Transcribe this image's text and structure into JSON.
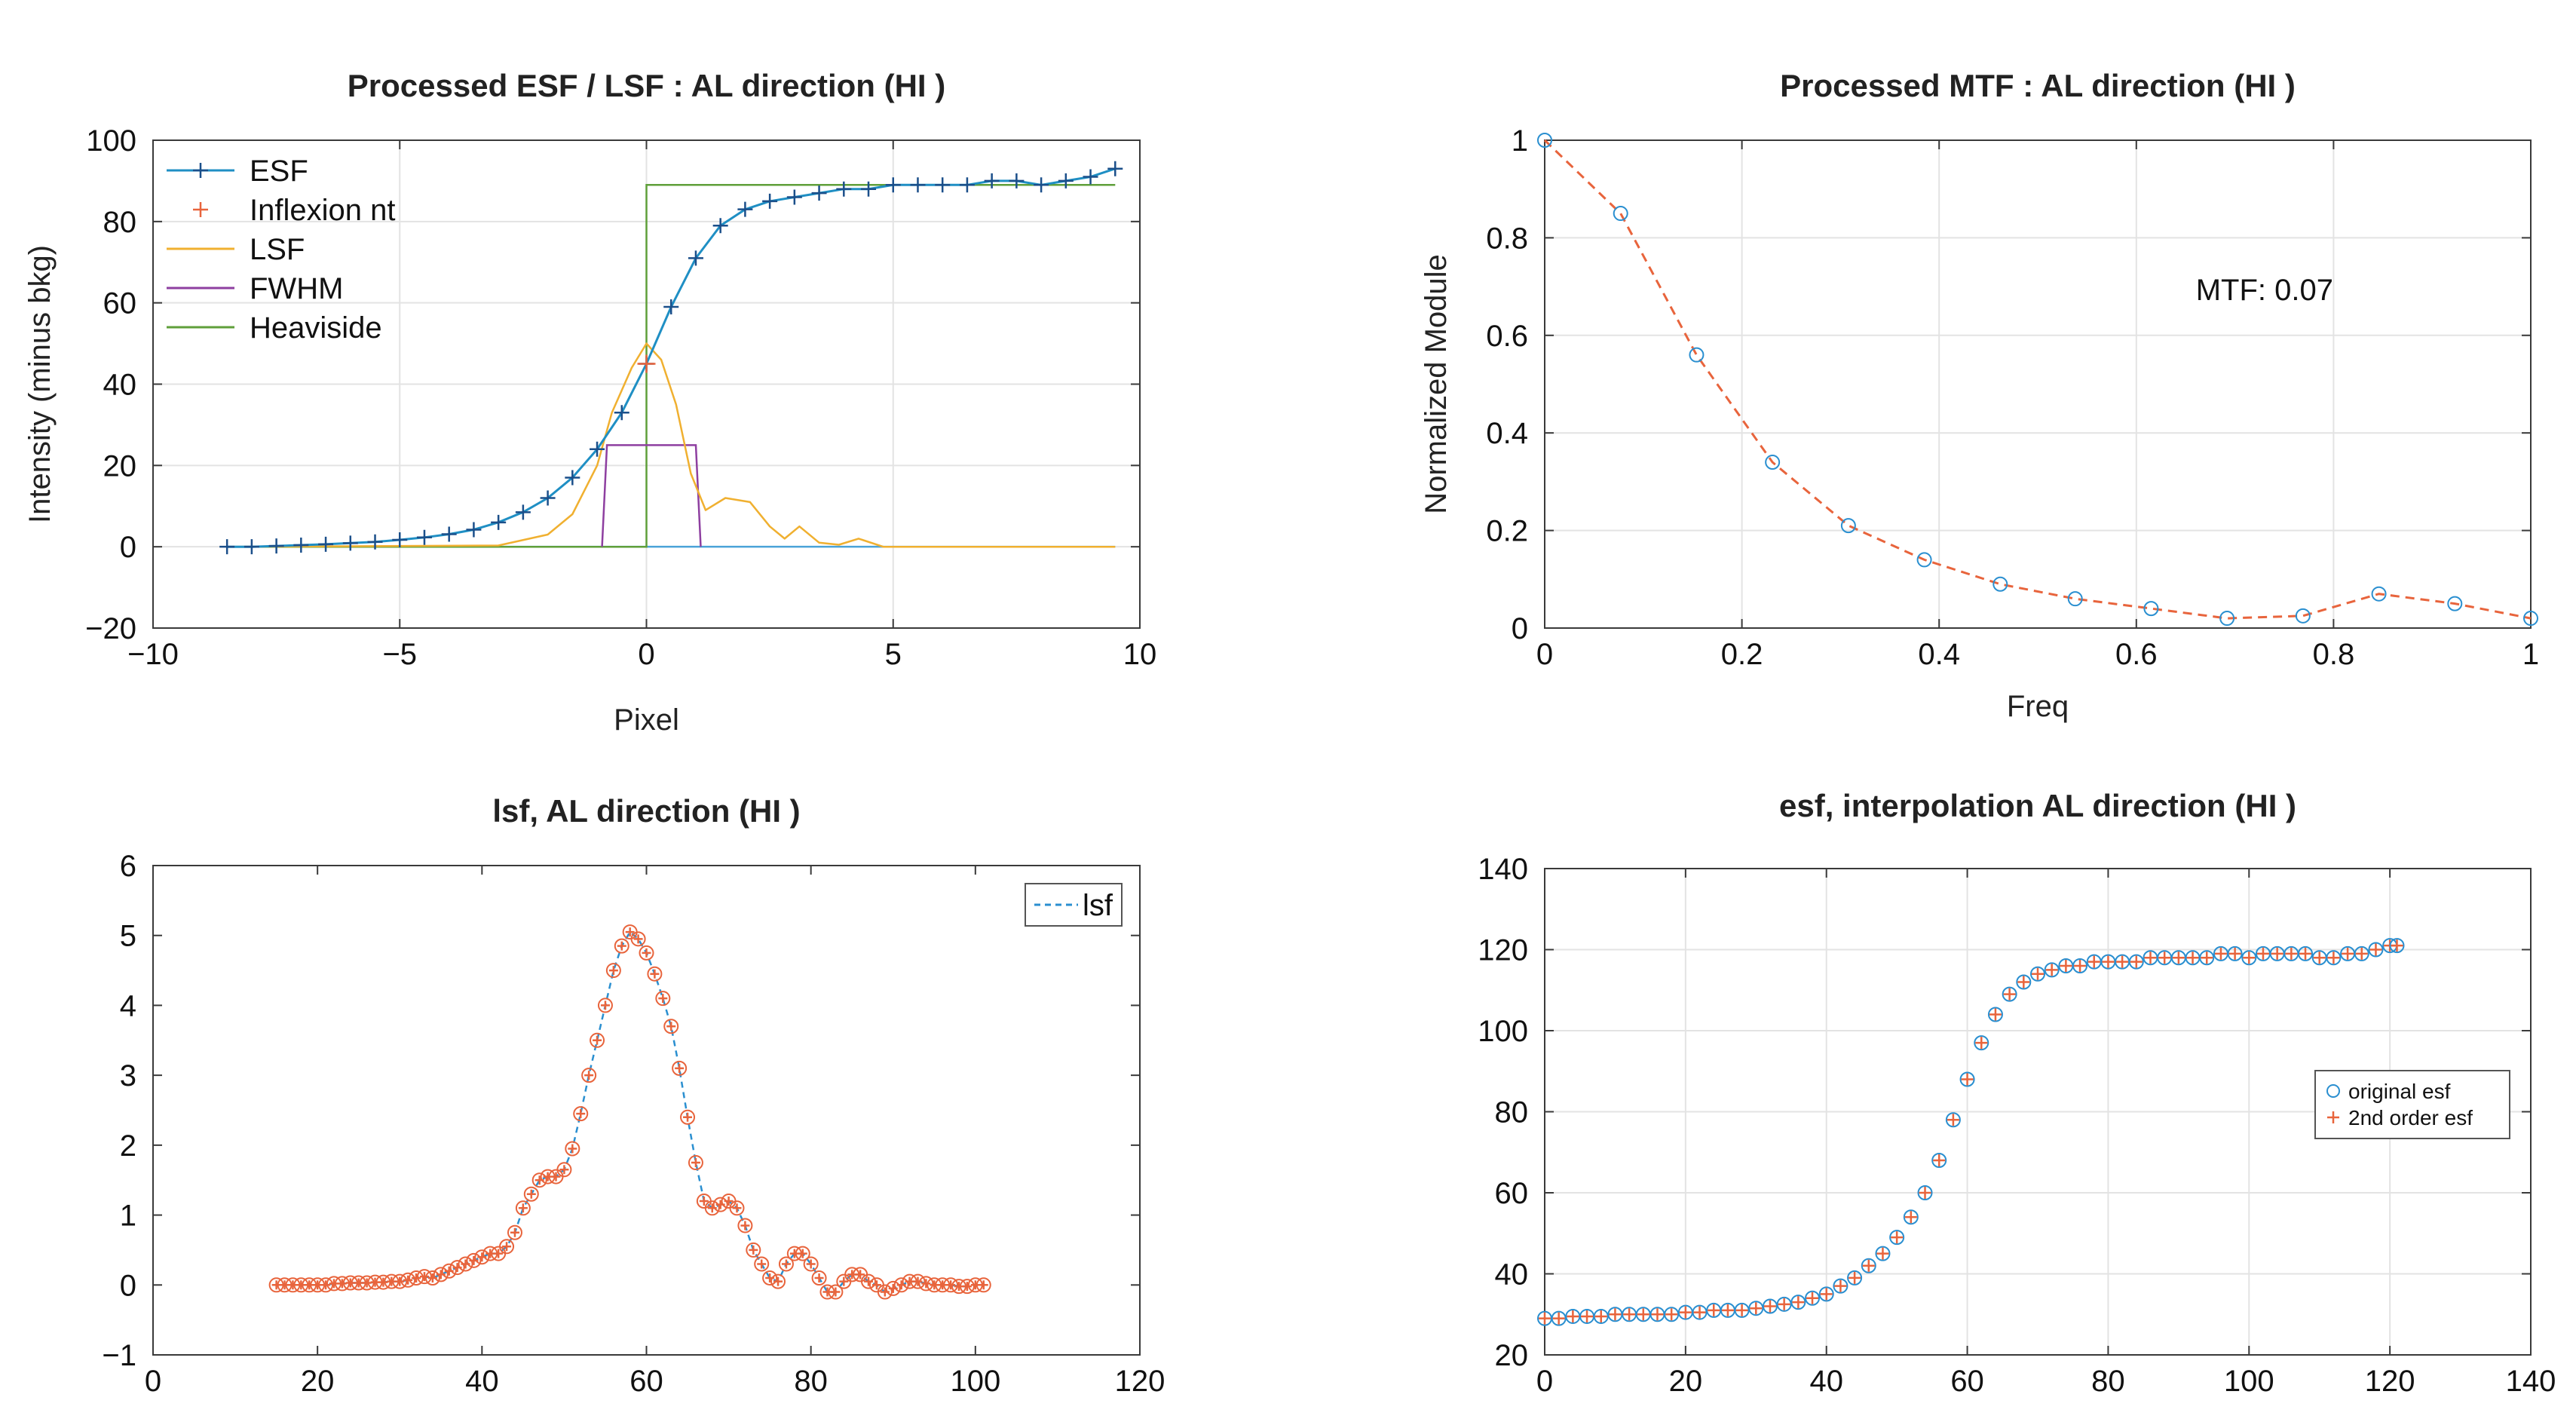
{
  "chart_data": [
    {
      "type": "line",
      "title": "Processed ESF / LSF : AL direction (HI )",
      "xlabel": "Pixel",
      "ylabel": "Intensity (minus bkg)",
      "xlim": [
        -10,
        10
      ],
      "ylim": [
        -20,
        100
      ],
      "xticks": [
        -10,
        -5,
        0,
        5,
        10
      ],
      "yticks": [
        -20,
        0,
        20,
        40,
        60,
        80,
        100
      ],
      "xtick_labels": [
        "−10",
        "−5",
        "0",
        "5",
        "10"
      ],
      "ytick_labels": [
        "−20",
        "0",
        "20",
        "40",
        "60",
        "80",
        "100"
      ],
      "grid": true,
      "legend_position": "top-left",
      "legend": [
        "ESF",
        "Inflexion nt",
        "LSF",
        "FWHM",
        "Heaviside"
      ],
      "colors": {
        "esf": "#1f8fc4",
        "inflexion": "#e8643c",
        "lsf": "#f0b030",
        "fwhm": "#8e3fa0",
        "heaviside": "#5f9f3a",
        "baseline": "#4aa3d8"
      },
      "series": [
        {
          "name": "ESF",
          "x": [
            -8.5,
            -8,
            -7.5,
            -7,
            -6.5,
            -6,
            -5.5,
            -5,
            -4.5,
            -4,
            -3.5,
            -3,
            -2.5,
            -2,
            -1.5,
            -1,
            -0.5,
            0,
            0.5,
            1,
            1.5,
            2,
            2.5,
            3,
            3.5,
            4,
            4.5,
            5,
            5.5,
            6,
            6.5,
            7,
            7.5,
            8,
            8.5,
            9,
            9.5
          ],
          "y": [
            0,
            0,
            0.2,
            0.4,
            0.6,
            0.9,
            1.2,
            1.7,
            2.3,
            3.1,
            4.2,
            6,
            8.5,
            12,
            17,
            24,
            33,
            45,
            59,
            71,
            79,
            83,
            85,
            86,
            87,
            88,
            88,
            89,
            89,
            89,
            89,
            90,
            90,
            89,
            90,
            91,
            93
          ]
        },
        {
          "name": "Inflexion nt",
          "x": [
            0
          ],
          "y": [
            45
          ]
        },
        {
          "name": "LSF",
          "x": [
            -8.5,
            -3,
            -2,
            -1.5,
            -1,
            -0.7,
            -0.3,
            0,
            0.3,
            0.6,
            0.9,
            1.2,
            1.6,
            2.1,
            2.5,
            2.8,
            3.1,
            3.5,
            3.9,
            4.3,
            4.8,
            5.3,
            9.5
          ],
          "y": [
            0,
            0.3,
            3,
            8,
            20,
            33,
            44,
            50,
            46,
            35,
            18,
            9,
            12,
            11,
            5,
            2,
            5,
            1,
            0.5,
            2,
            0,
            0,
            0
          ]
        },
        {
          "name": "FWHM",
          "x": [
            -0.9,
            -0.8,
            1.0,
            1.1
          ],
          "y": [
            0,
            25,
            25,
            0
          ]
        },
        {
          "name": "Heaviside",
          "x": [
            -8.5,
            0,
            0,
            9.5
          ],
          "y": [
            0,
            0,
            89,
            89
          ]
        }
      ]
    },
    {
      "type": "line",
      "title": "Processed MTF : AL direction (HI )",
      "xlabel": "Freq",
      "ylabel": "Normalized Module",
      "xlim": [
        0,
        1
      ],
      "ylim": [
        0,
        1
      ],
      "xticks": [
        0,
        0.2,
        0.4,
        0.6,
        0.8,
        1
      ],
      "yticks": [
        0,
        0.2,
        0.4,
        0.6,
        0.8,
        1
      ],
      "xtick_labels": [
        "0",
        "0.2",
        "0.4",
        "0.6",
        "0.8",
        "1"
      ],
      "ytick_labels": [
        "0",
        "0.2",
        "0.4",
        "0.6",
        "0.8",
        "1"
      ],
      "grid": true,
      "annotation": "MTF: 0.07",
      "colors": {
        "line": "#e8643c",
        "marker": "#2a8fd0"
      },
      "series": [
        {
          "name": "MTF",
          "x": [
            0,
            0.077,
            0.154,
            0.231,
            0.308,
            0.385,
            0.462,
            0.538,
            0.615,
            0.692,
            0.769,
            0.846,
            0.923,
            1.0
          ],
          "y": [
            1.0,
            0.85,
            0.56,
            0.34,
            0.21,
            0.14,
            0.09,
            0.06,
            0.04,
            0.02,
            0.025,
            0.07,
            0.05,
            0.02
          ]
        }
      ]
    },
    {
      "type": "scatter",
      "title": "lsf, AL direction (HI )",
      "xlabel": "",
      "ylabel": "",
      "xlim": [
        0,
        120
      ],
      "ylim": [
        -1,
        6
      ],
      "xticks": [
        0,
        20,
        40,
        60,
        80,
        100,
        120
      ],
      "yticks": [
        -1,
        0,
        1,
        2,
        3,
        4,
        5,
        6
      ],
      "xtick_labels": [
        "0",
        "20",
        "40",
        "60",
        "80",
        "100",
        "120"
      ],
      "ytick_labels": [
        "−1",
        "0",
        "1",
        "2",
        "3",
        "4",
        "5",
        "6"
      ],
      "grid": false,
      "legend_position": "top-right",
      "legend": [
        "lsf"
      ],
      "colors": {
        "line": "#2a8fd0",
        "marker": "#e8643c"
      },
      "series": [
        {
          "name": "lsf",
          "x": [
            15,
            16,
            17,
            18,
            19,
            20,
            21,
            22,
            23,
            24,
            25,
            26,
            27,
            28,
            29,
            30,
            31,
            32,
            33,
            34,
            35,
            36,
            37,
            38,
            39,
            40,
            41,
            42,
            43,
            44,
            45,
            46,
            47,
            48,
            49,
            50,
            51,
            52,
            53,
            54,
            55,
            56,
            57,
            58,
            59,
            60,
            61,
            62,
            63,
            64,
            65,
            66,
            67,
            68,
            69,
            70,
            71,
            72,
            73,
            74,
            75,
            76,
            77,
            78,
            79,
            80,
            81,
            82,
            83,
            84,
            85,
            86,
            87,
            88,
            89,
            90,
            91,
            92,
            93,
            94,
            95,
            96,
            97,
            98,
            99,
            100,
            101
          ],
          "y": [
            0,
            0,
            0,
            0,
            0,
            0,
            0,
            0.02,
            0.02,
            0.03,
            0.03,
            0.03,
            0.04,
            0.04,
            0.05,
            0.05,
            0.07,
            0.1,
            0.12,
            0.1,
            0.15,
            0.2,
            0.25,
            0.3,
            0.35,
            0.4,
            0.45,
            0.45,
            0.55,
            0.75,
            1.1,
            1.3,
            1.5,
            1.55,
            1.55,
            1.65,
            1.95,
            2.45,
            3.0,
            3.5,
            4.0,
            4.5,
            4.85,
            5.05,
            4.95,
            4.75,
            4.45,
            4.1,
            3.7,
            3.1,
            2.4,
            1.75,
            1.2,
            1.1,
            1.15,
            1.2,
            1.1,
            0.85,
            0.5,
            0.3,
            0.1,
            0.05,
            0.3,
            0.45,
            0.45,
            0.3,
            0.1,
            -0.1,
            -0.1,
            0.05,
            0.15,
            0.15,
            0.05,
            0,
            -0.1,
            -0.05,
            0,
            0.05,
            0.05,
            0.02,
            0,
            0,
            0,
            -0.02,
            -0.02,
            0,
            0
          ]
        }
      ]
    },
    {
      "type": "scatter",
      "title": "esf, interpolation AL direction (HI )",
      "xlabel": "",
      "ylabel": "",
      "xlim": [
        0,
        140
      ],
      "ylim": [
        20,
        140
      ],
      "xticks": [
        0,
        20,
        40,
        60,
        80,
        100,
        120,
        140
      ],
      "yticks": [
        20,
        40,
        60,
        80,
        100,
        120,
        140
      ],
      "xtick_labels": [
        "0",
        "20",
        "40",
        "60",
        "80",
        "100",
        "120",
        "140"
      ],
      "ytick_labels": [
        "20",
        "40",
        "60",
        "80",
        "100",
        "120",
        "140"
      ],
      "grid": true,
      "legend_position": "middle-right",
      "legend": [
        "original esf",
        "2nd order esf"
      ],
      "colors": {
        "original": "#2a8fd0",
        "second": "#e8643c"
      },
      "series": [
        {
          "name": "esf",
          "x": [
            0,
            2,
            4,
            6,
            8,
            10,
            12,
            14,
            16,
            18,
            20,
            22,
            24,
            26,
            28,
            30,
            32,
            34,
            36,
            38,
            40,
            42,
            44,
            46,
            48,
            50,
            52,
            54,
            56,
            58,
            60,
            62,
            64,
            66,
            68,
            70,
            72,
            74,
            76,
            78,
            80,
            82,
            84,
            86,
            88,
            90,
            92,
            94,
            96,
            98,
            100,
            102,
            104,
            106,
            108,
            110,
            112,
            114,
            116,
            118,
            120,
            121
          ],
          "y": [
            29,
            29,
            29.5,
            29.5,
            29.5,
            30,
            30,
            30,
            30,
            30,
            30.5,
            30.5,
            31,
            31,
            31,
            31.5,
            32,
            32.5,
            33,
            34,
            35,
            37,
            39,
            42,
            45,
            49,
            54,
            60,
            68,
            78,
            88,
            97,
            104,
            109,
            112,
            114,
            115,
            116,
            116,
            117,
            117,
            117,
            117,
            118,
            118,
            118,
            118,
            118,
            119,
            119,
            118,
            119,
            119,
            119,
            119,
            118,
            118,
            119,
            119,
            120,
            121,
            121
          ]
        }
      ]
    }
  ]
}
